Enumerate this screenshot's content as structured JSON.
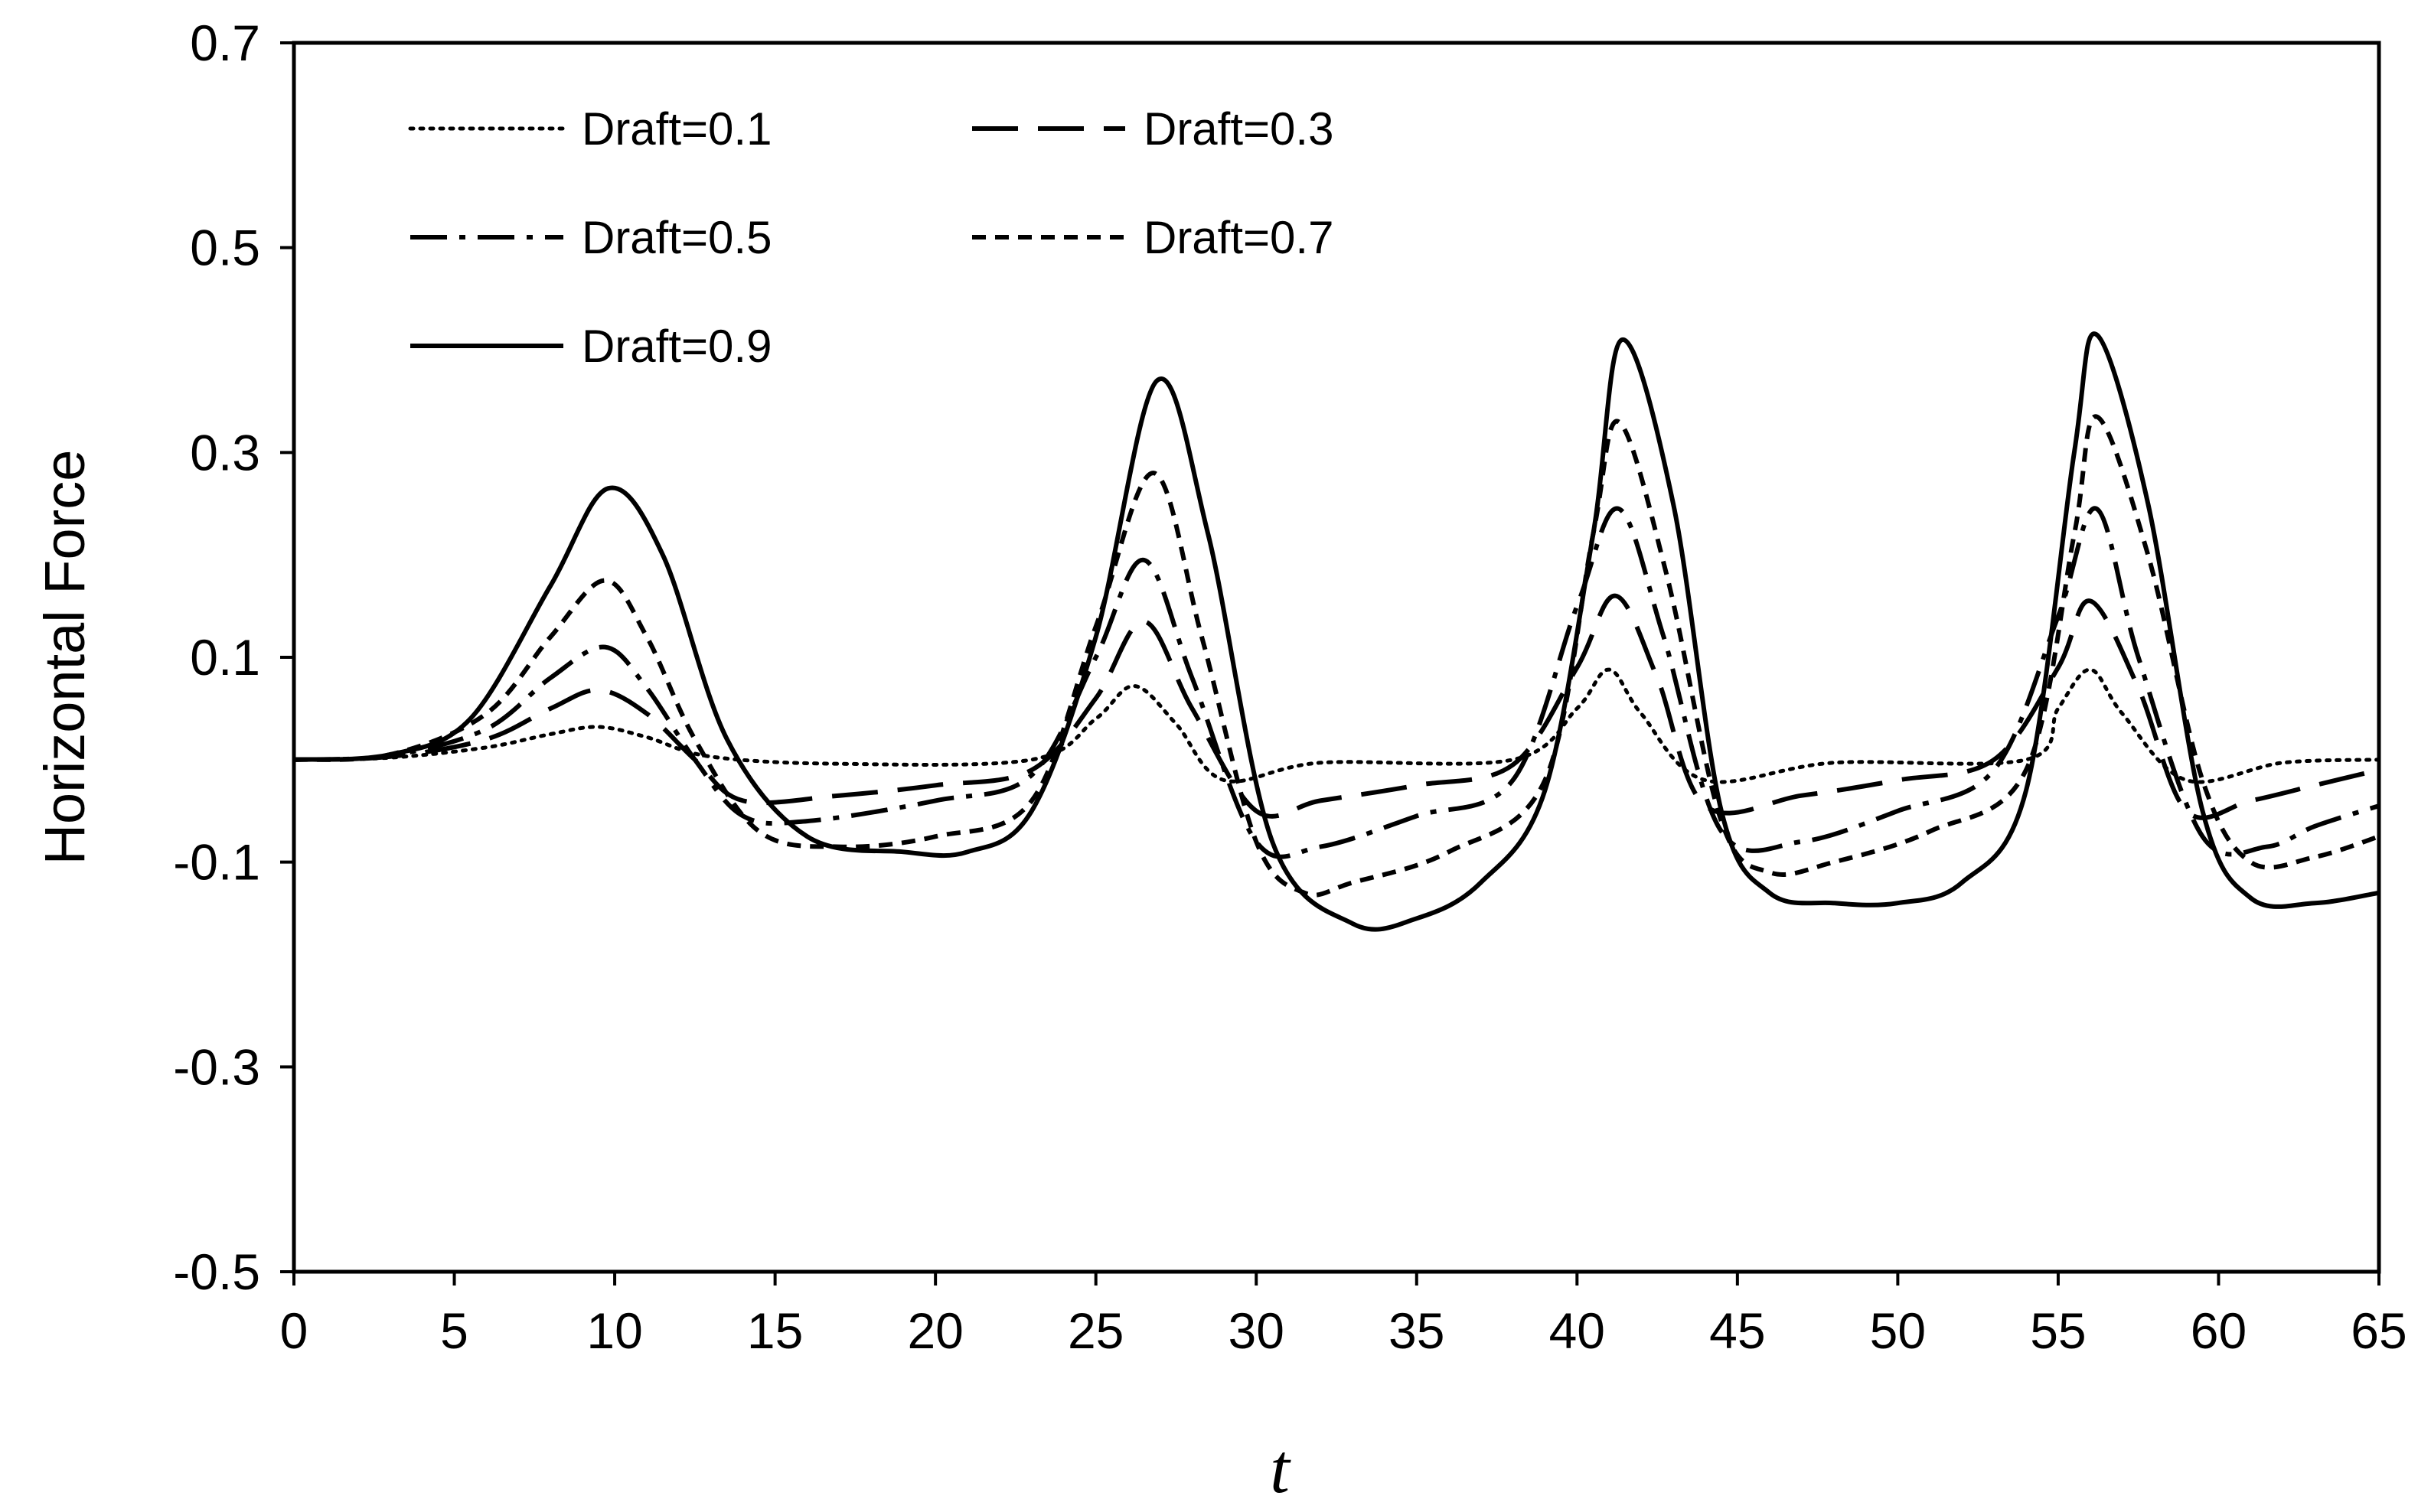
{
  "chart_data": {
    "type": "line",
    "title": "",
    "xlabel": "t",
    "ylabel": "Horizontal Force",
    "xlim": [
      0,
      65
    ],
    "ylim": [
      -0.5,
      0.7
    ],
    "xticks": [
      "0",
      "5",
      "10",
      "15",
      "20",
      "25",
      "30",
      "35",
      "40",
      "45",
      "50",
      "55",
      "60",
      "65"
    ],
    "yticks": [
      "-0.5",
      "-0.3",
      "-0.1",
      "0.1",
      "0.3",
      "0.5",
      "0.7"
    ],
    "grid": false,
    "legend_position": "top-left",
    "series": [
      {
        "name": "Draft=0.1",
        "line_style": "dotted",
        "x": [
          0,
          3,
          6,
          8,
          9.5,
          11,
          13,
          17,
          23,
          25,
          26.2,
          27.5,
          29,
          32,
          38,
          40,
          41,
          42,
          44,
          48,
          54,
          55,
          56,
          57,
          59,
          62,
          65
        ],
        "y": [
          0,
          0.002,
          0.012,
          0.025,
          0.032,
          0.022,
          0.003,
          -0.004,
          0.0,
          0.04,
          0.072,
          0.035,
          -0.02,
          -0.003,
          0.0,
          0.05,
          0.088,
          0.045,
          -0.02,
          -0.003,
          0.0,
          0.05,
          0.088,
          0.045,
          -0.02,
          -0.003,
          0.0
        ]
      },
      {
        "name": "Draft=0.3",
        "line_style": "long dash",
        "x": [
          0,
          3,
          6,
          8,
          9.5,
          11,
          12.5,
          14,
          17,
          20,
          23,
          25,
          26.5,
          28,
          30,
          32,
          35,
          38,
          40,
          41.2,
          42.5,
          44,
          47,
          50,
          53,
          55,
          56,
          57.5,
          59,
          61,
          63,
          65
        ],
        "y": [
          0,
          0.003,
          0.02,
          0.05,
          0.068,
          0.045,
          0.0,
          -0.04,
          -0.035,
          -0.025,
          -0.01,
          0.06,
          0.135,
          0.05,
          -0.05,
          -0.04,
          -0.025,
          -0.005,
          0.09,
          0.16,
          0.08,
          -0.045,
          -0.035,
          -0.02,
          0.0,
          0.09,
          0.155,
          0.07,
          -0.05,
          -0.04,
          -0.025,
          -0.01
        ]
      },
      {
        "name": "Draft=0.5",
        "line_style": "dash-dot",
        "x": [
          0,
          3,
          6,
          8,
          9.7,
          11,
          12.5,
          14,
          16,
          20,
          23,
          25,
          26.5,
          28,
          30,
          32,
          35,
          38,
          40,
          41.3,
          42.7,
          44.5,
          47,
          50,
          53,
          55,
          56.2,
          57.5,
          59.5,
          61.5,
          63,
          65
        ],
        "y": [
          0,
          0.004,
          0.03,
          0.08,
          0.11,
          0.07,
          0.0,
          -0.055,
          -0.06,
          -0.04,
          -0.015,
          0.1,
          0.195,
          0.08,
          -0.08,
          -0.085,
          -0.055,
          -0.02,
          0.15,
          0.245,
          0.12,
          -0.07,
          -0.08,
          -0.05,
          -0.01,
          0.14,
          0.245,
          0.1,
          -0.075,
          -0.085,
          -0.065,
          -0.045
        ]
      },
      {
        "name": "Draft=0.7",
        "line_style": "short dash",
        "x": [
          0,
          3,
          6,
          8,
          9.7,
          11,
          12.5,
          14.5,
          17,
          20,
          23,
          25,
          26.8,
          28.3,
          30,
          31.5,
          33,
          36,
          39,
          40.5,
          41.3,
          42.8,
          44.5,
          46,
          48,
          51,
          54,
          55.5,
          56.2,
          57.8,
          59.5,
          61,
          63,
          65
        ],
        "y": [
          0,
          0.005,
          0.045,
          0.12,
          0.175,
          0.12,
          0.02,
          -0.07,
          -0.085,
          -0.075,
          -0.04,
          0.13,
          0.28,
          0.12,
          -0.08,
          -0.13,
          -0.12,
          -0.09,
          -0.02,
          0.22,
          0.33,
          0.18,
          -0.06,
          -0.11,
          -0.1,
          -0.07,
          -0.01,
          0.22,
          0.335,
          0.2,
          -0.02,
          -0.1,
          -0.095,
          -0.075
        ]
      },
      {
        "name": "Draft=0.9",
        "line_style": "solid",
        "x": [
          0,
          3,
          5.5,
          8,
          9.8,
          11.5,
          13.5,
          16,
          19,
          21,
          23,
          25,
          26.9,
          28.5,
          30.5,
          33,
          35,
          37,
          39,
          40.5,
          41.4,
          43,
          44.5,
          46,
          48,
          50,
          52,
          54,
          55.5,
          56.2,
          57.8,
          59.5,
          61,
          63,
          65
        ],
        "y": [
          0,
          0.005,
          0.04,
          0.17,
          0.265,
          0.2,
          0.02,
          -0.075,
          -0.09,
          -0.09,
          -0.05,
          0.12,
          0.37,
          0.22,
          -0.08,
          -0.16,
          -0.155,
          -0.12,
          -0.03,
          0.22,
          0.41,
          0.25,
          -0.05,
          -0.13,
          -0.14,
          -0.14,
          -0.12,
          -0.03,
          0.3,
          0.415,
          0.25,
          -0.05,
          -0.135,
          -0.14,
          -0.13
        ]
      }
    ]
  }
}
